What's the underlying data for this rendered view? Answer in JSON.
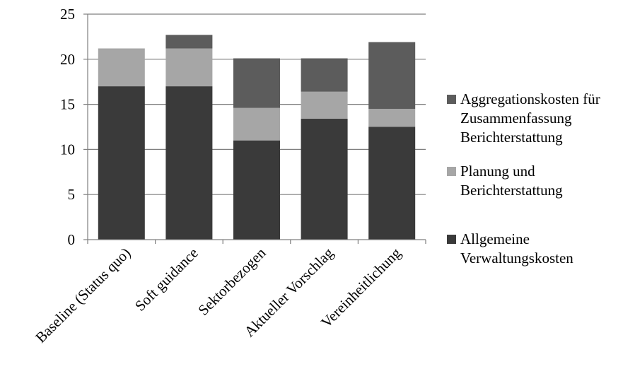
{
  "chart_data": {
    "type": "bar",
    "stacked": true,
    "title": "",
    "xlabel": "",
    "ylabel": "",
    "ylim": [
      0,
      25
    ],
    "yticks": [
      0,
      5,
      10,
      15,
      20,
      25
    ],
    "grid": true,
    "legend_position": "right",
    "categories": [
      "Baseline (Status quo)",
      "Soft guidance",
      "Sektorbezogen",
      "Aktueller Vorschlag",
      "Vereinheitlichung"
    ],
    "series": [
      {
        "name": "Allgemeine Verwaltungskosten",
        "color": "#3a3a3a",
        "values": [
          17.0,
          17.0,
          11.0,
          13.4,
          12.5
        ]
      },
      {
        "name": "Planung und Berichterstattung",
        "color": "#a6a6a6",
        "values": [
          4.2,
          4.2,
          3.6,
          3.0,
          2.0
        ]
      },
      {
        "name": "Aggregationskosten für Zusammenfassung Berichterstattung",
        "color": "#5c5c5c",
        "values": [
          0.0,
          1.5,
          5.5,
          3.7,
          7.4
        ]
      }
    ]
  }
}
